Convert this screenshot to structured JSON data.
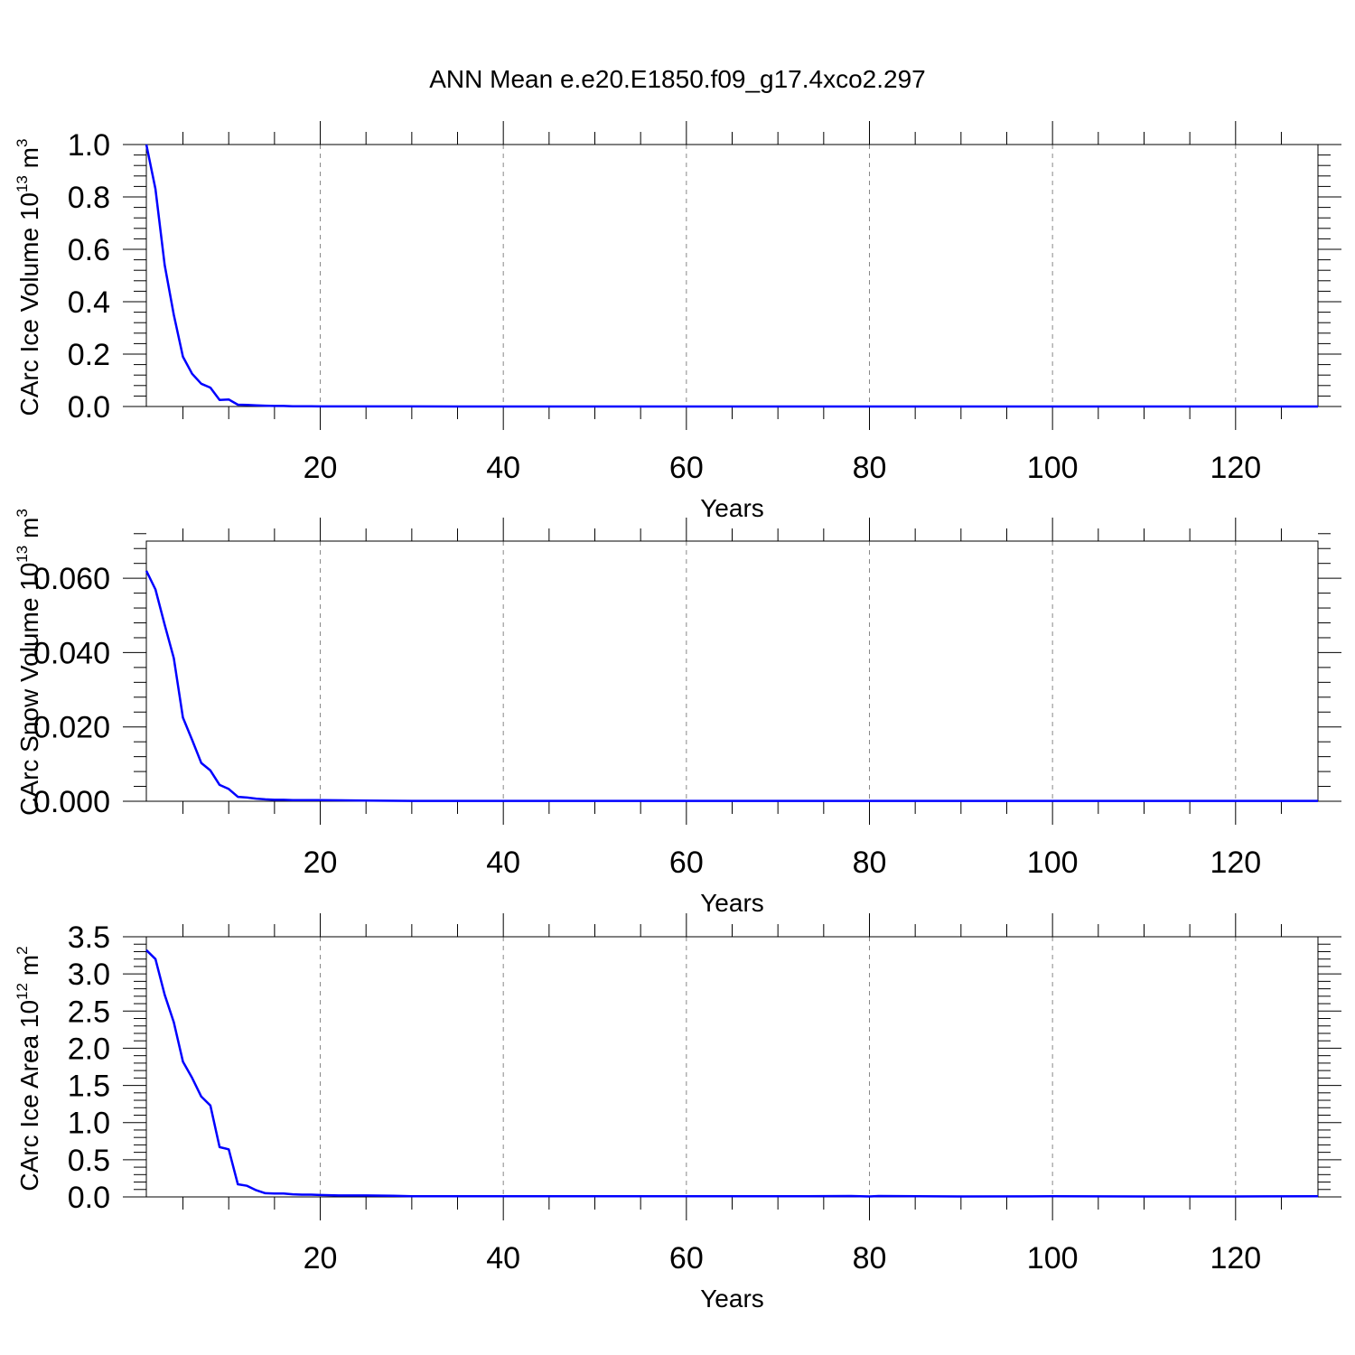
{
  "title": "ANN Mean e.e20.E1850.f09_g17.4xco2.297",
  "chart_data": [
    {
      "type": "line",
      "xlabel": "Years",
      "ylabel": "CArc Ice Volume 10",
      "ylabel_exp": "13",
      "ylabel_unit": " m",
      "ylabel_unit_exp": "3",
      "xlim": [
        1,
        129
      ],
      "ylim": [
        0,
        1.0
      ],
      "xticks": [
        20,
        40,
        60,
        80,
        100,
        120
      ],
      "yticks": [
        0.0,
        0.2,
        0.4,
        0.6,
        0.8,
        1.0
      ],
      "ytick_labels": [
        "0.0",
        "0.2",
        "0.4",
        "0.6",
        "0.8",
        "1.0"
      ],
      "grid": "vertical dashed",
      "color": "#0000ff",
      "x": [
        1,
        2,
        3,
        4,
        5,
        6,
        7,
        8,
        9,
        10,
        11,
        12,
        13,
        14,
        15,
        16,
        17,
        18,
        19,
        20,
        25,
        30,
        40,
        50,
        60,
        70,
        80,
        90,
        100,
        110,
        120,
        129
      ],
      "y": [
        1.0,
        0.83,
        0.54,
        0.35,
        0.19,
        0.125,
        0.087,
        0.072,
        0.025,
        0.027,
        0.007,
        0.006,
        0.004,
        0.003,
        0.002,
        0.002,
        0.001,
        0.001,
        0.001,
        0.0005,
        0.0003,
        0.0002,
        0.0001,
        0.0001,
        0.0001,
        0.0001,
        0.0001,
        0.0001,
        0.0001,
        0.0001,
        0.0001,
        0.0001
      ]
    },
    {
      "type": "line",
      "xlabel": "Years",
      "ylabel": "CArc Snow Volume 10",
      "ylabel_exp": "13",
      "ylabel_unit": " m",
      "ylabel_unit_exp": "3",
      "xlim": [
        1,
        129
      ],
      "ylim": [
        0,
        0.07
      ],
      "xticks": [
        20,
        40,
        60,
        80,
        100,
        120
      ],
      "yticks": [
        0.0,
        0.02,
        0.04,
        0.06
      ],
      "ytick_labels": [
        "0.000",
        "0.020",
        "0.040",
        "0.060"
      ],
      "grid": "vertical dashed",
      "color": "#0000ff",
      "x": [
        1,
        2,
        3,
        4,
        5,
        6,
        7,
        8,
        9,
        10,
        11,
        12,
        13,
        14,
        15,
        16,
        17,
        18,
        19,
        20,
        25,
        30,
        40,
        50,
        60,
        70,
        80,
        90,
        100,
        110,
        120,
        129
      ],
      "y": [
        0.062,
        0.057,
        0.0475,
        0.0385,
        0.0225,
        0.0165,
        0.0103,
        0.0083,
        0.0044,
        0.0033,
        0.0012,
        0.001,
        0.0007,
        0.0005,
        0.0004,
        0.0004,
        0.0003,
        0.0003,
        0.0003,
        0.0003,
        0.0002,
        0.0001,
        0.0001,
        0.0001,
        0.0001,
        0.0001,
        0.0001,
        0.0001,
        0.0001,
        0.0001,
        0.0001,
        0.0001
      ]
    },
    {
      "type": "line",
      "xlabel": "Years",
      "ylabel": "CArc Ice Area 10",
      "ylabel_exp": "12",
      "ylabel_unit": " m",
      "ylabel_unit_exp": "2",
      "xlim": [
        1,
        129
      ],
      "ylim": [
        0,
        3.5
      ],
      "xticks": [
        20,
        40,
        60,
        80,
        100,
        120
      ],
      "yticks": [
        0.0,
        0.5,
        1.0,
        1.5,
        2.0,
        2.5,
        3.0,
        3.5
      ],
      "ytick_labels": [
        "0.0",
        "0.5",
        "1.0",
        "1.5",
        "2.0",
        "2.5",
        "3.0",
        "3.5"
      ],
      "grid": "vertical dashed",
      "color": "#0000ff",
      "x": [
        1,
        2,
        3,
        4,
        5,
        6,
        7,
        8,
        9,
        10,
        11,
        12,
        13,
        14,
        15,
        16,
        17,
        18,
        19,
        20,
        22,
        25,
        28,
        30,
        35,
        40,
        50,
        60,
        70,
        78,
        80,
        81,
        90,
        100,
        110,
        120,
        129
      ],
      "y": [
        3.32,
        3.2,
        2.72,
        2.35,
        1.82,
        1.6,
        1.35,
        1.23,
        0.67,
        0.64,
        0.17,
        0.15,
        0.09,
        0.05,
        0.045,
        0.045,
        0.035,
        0.03,
        0.03,
        0.025,
        0.02,
        0.02,
        0.015,
        0.01,
        0.01,
        0.008,
        0.008,
        0.008,
        0.008,
        0.012,
        0.006,
        0.012,
        0.006,
        0.008,
        0.006,
        0.006,
        0.008
      ]
    }
  ]
}
